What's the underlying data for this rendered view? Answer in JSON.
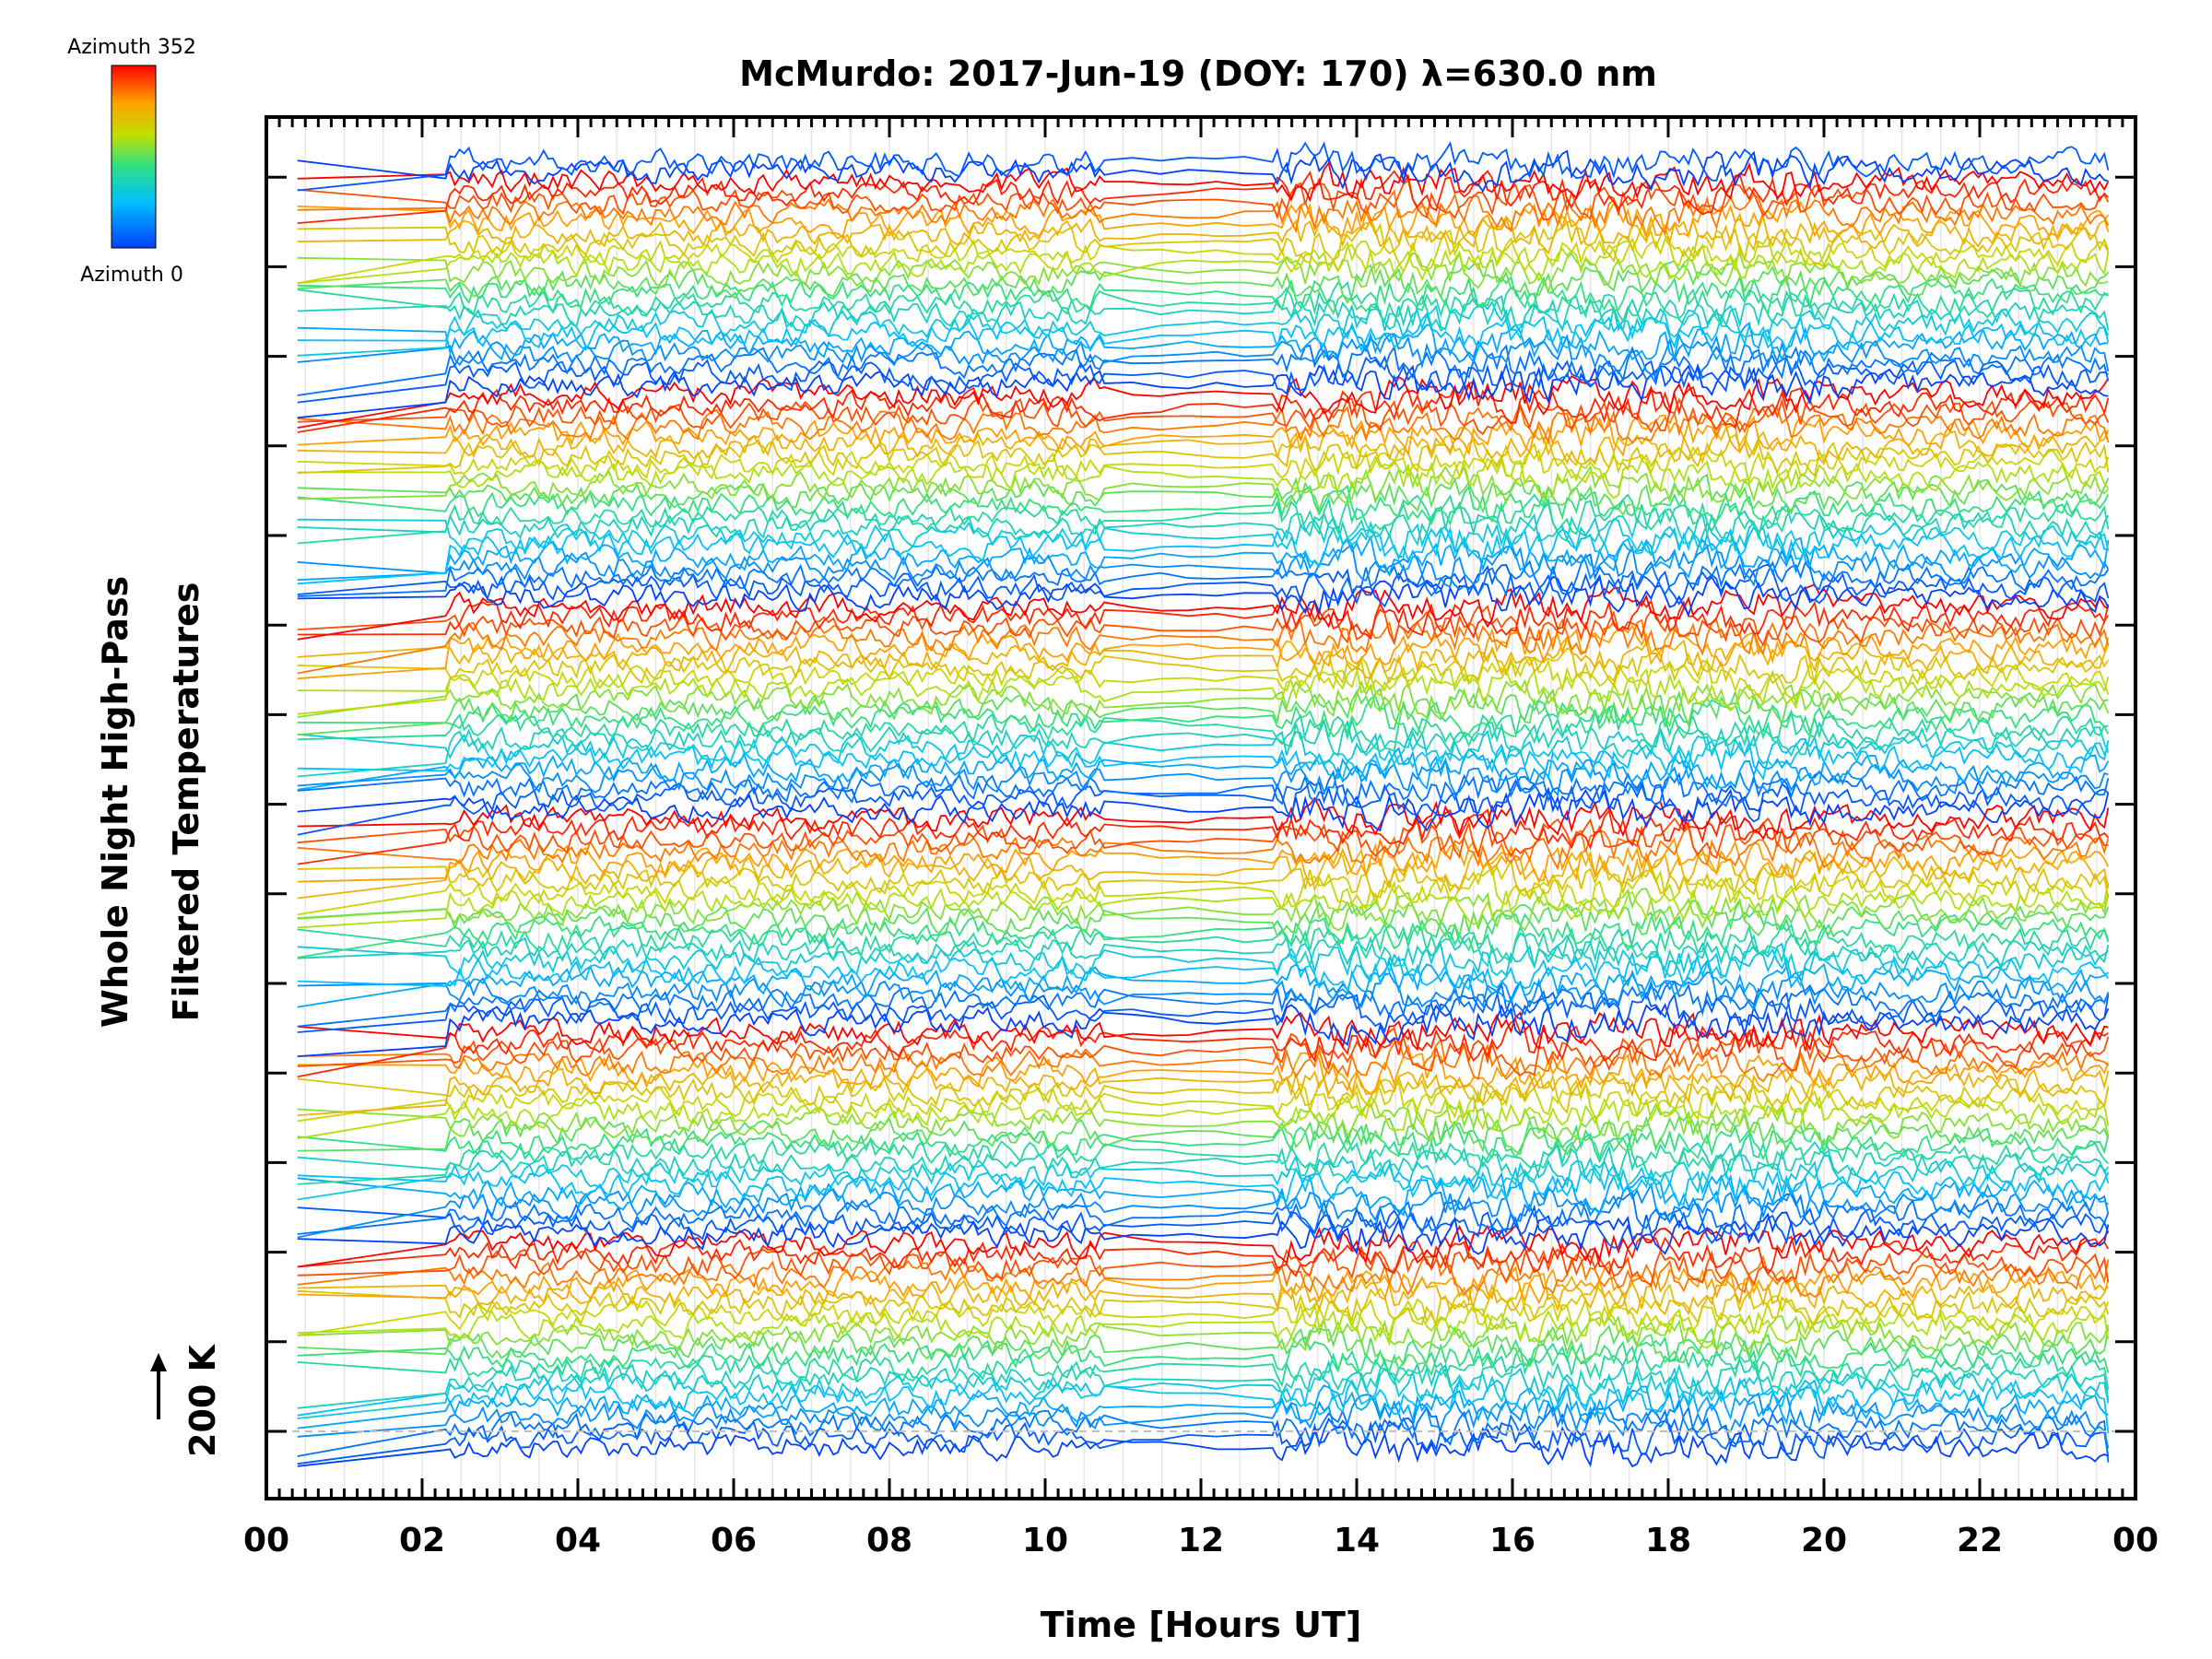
{
  "chart_data": {
    "type": "line",
    "title": "McMurdo: 2017-Jun-19 (DOY: 170) λ=630.0 nm",
    "xlabel": "Time [Hours UT]",
    "ylabel": [
      "Whole Night High-Pass",
      "Filtered Temperatures"
    ],
    "xlim": [
      0,
      24
    ],
    "x_tick_labels": [
      "00",
      "02",
      "04",
      "06",
      "08",
      "10",
      "12",
      "14",
      "16",
      "18",
      "20",
      "22",
      "00"
    ],
    "scale_bar_label": "200 K",
    "colorbar": {
      "top_label": "Azimuth 352",
      "bottom_label": "Azimuth 0",
      "min": 0,
      "max": 352
    },
    "n_traces": 128,
    "data_start_hour": 0.4,
    "data_end_hour": 23.65,
    "gap_hours": [
      0.45,
      2.3
    ],
    "note": "Stacked high-pass filtered temperature traces, one per sky azimuth, colored by azimuth (blue = 0, red = 352); traces offset vertically"
  }
}
